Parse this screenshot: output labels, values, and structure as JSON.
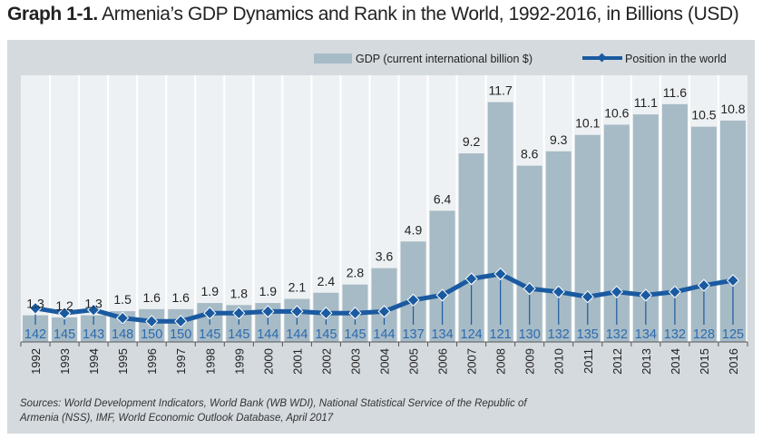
{
  "title": {
    "prefix": "Graph 1-1.",
    "text": "Armenia’s GDP Dynamics and Rank in the World, 1992-2016, in Billions (USD)"
  },
  "source": "Sources: World Development Indicators, World Bank (WB WDI), National Statistical Service of the Republic of Armenia (NSS), IMF, World Economic Outlook Database, April 2017",
  "colors": {
    "bar": "#a7bbc6",
    "line": "#1a5aa0",
    "rank_label": "#2c6bb0",
    "plot_bg": "#eef1f3",
    "panel_bg": "#d5dade"
  },
  "chart_data": {
    "type": "bar",
    "title": "Armenia’s GDP Dynamics and Rank in the World, 1992-2016, in Billions (USD)",
    "xlabel": "",
    "ylabel": "",
    "legend_position": "top-right",
    "grid": false,
    "categories": [
      "1992",
      "1993",
      "1994",
      "1995",
      "1996",
      "1997",
      "1998",
      "1999",
      "2000",
      "2001",
      "2002",
      "2003",
      "2004",
      "2005",
      "2006",
      "2007",
      "2008",
      "2009",
      "2010",
      "2011",
      "2012",
      "2013",
      "2014",
      "2015",
      "2016"
    ],
    "series": [
      {
        "name": "GDP (current international billion $)",
        "type": "bar",
        "values": [
          1.3,
          1.2,
          1.3,
          1.5,
          1.6,
          1.6,
          1.9,
          1.8,
          1.9,
          2.1,
          2.4,
          2.8,
          3.6,
          4.9,
          6.4,
          9.2,
          11.7,
          8.6,
          9.3,
          10.1,
          10.6,
          11.1,
          11.6,
          10.5,
          10.8
        ],
        "labels": [
          "1.3",
          "1.2",
          "1.3",
          "1.5",
          "1.6",
          "1.6",
          "1.9",
          "1.8",
          "1.9",
          "2.1",
          "2.4",
          "2.8",
          "3.6",
          "4.9",
          "6.4",
          "9.2",
          "11.7",
          "8.6",
          "9.3",
          "10.1",
          "10.6",
          "11.1",
          "11.6",
          "10.5",
          "10.8"
        ]
      },
      {
        "name": "Position in the world",
        "type": "line",
        "values": [
          142,
          145,
          143,
          148,
          150,
          150,
          145,
          145,
          144,
          144,
          145,
          145,
          144,
          137,
          134,
          124,
          121,
          130,
          132,
          135,
          132,
          134,
          132,
          128,
          125
        ],
        "labels": [
          "142",
          "145",
          "143",
          "148",
          "150",
          "150",
          "145",
          "145",
          "144",
          "144",
          "145",
          "145",
          "144",
          "137",
          "134",
          "124",
          "121",
          "130",
          "132",
          "135",
          "132",
          "134",
          "132",
          "128",
          "125"
        ]
      }
    ],
    "ylim_gdp": [
      0,
      13
    ],
    "ylim_rank_inverted": [
      121,
      150
    ]
  }
}
